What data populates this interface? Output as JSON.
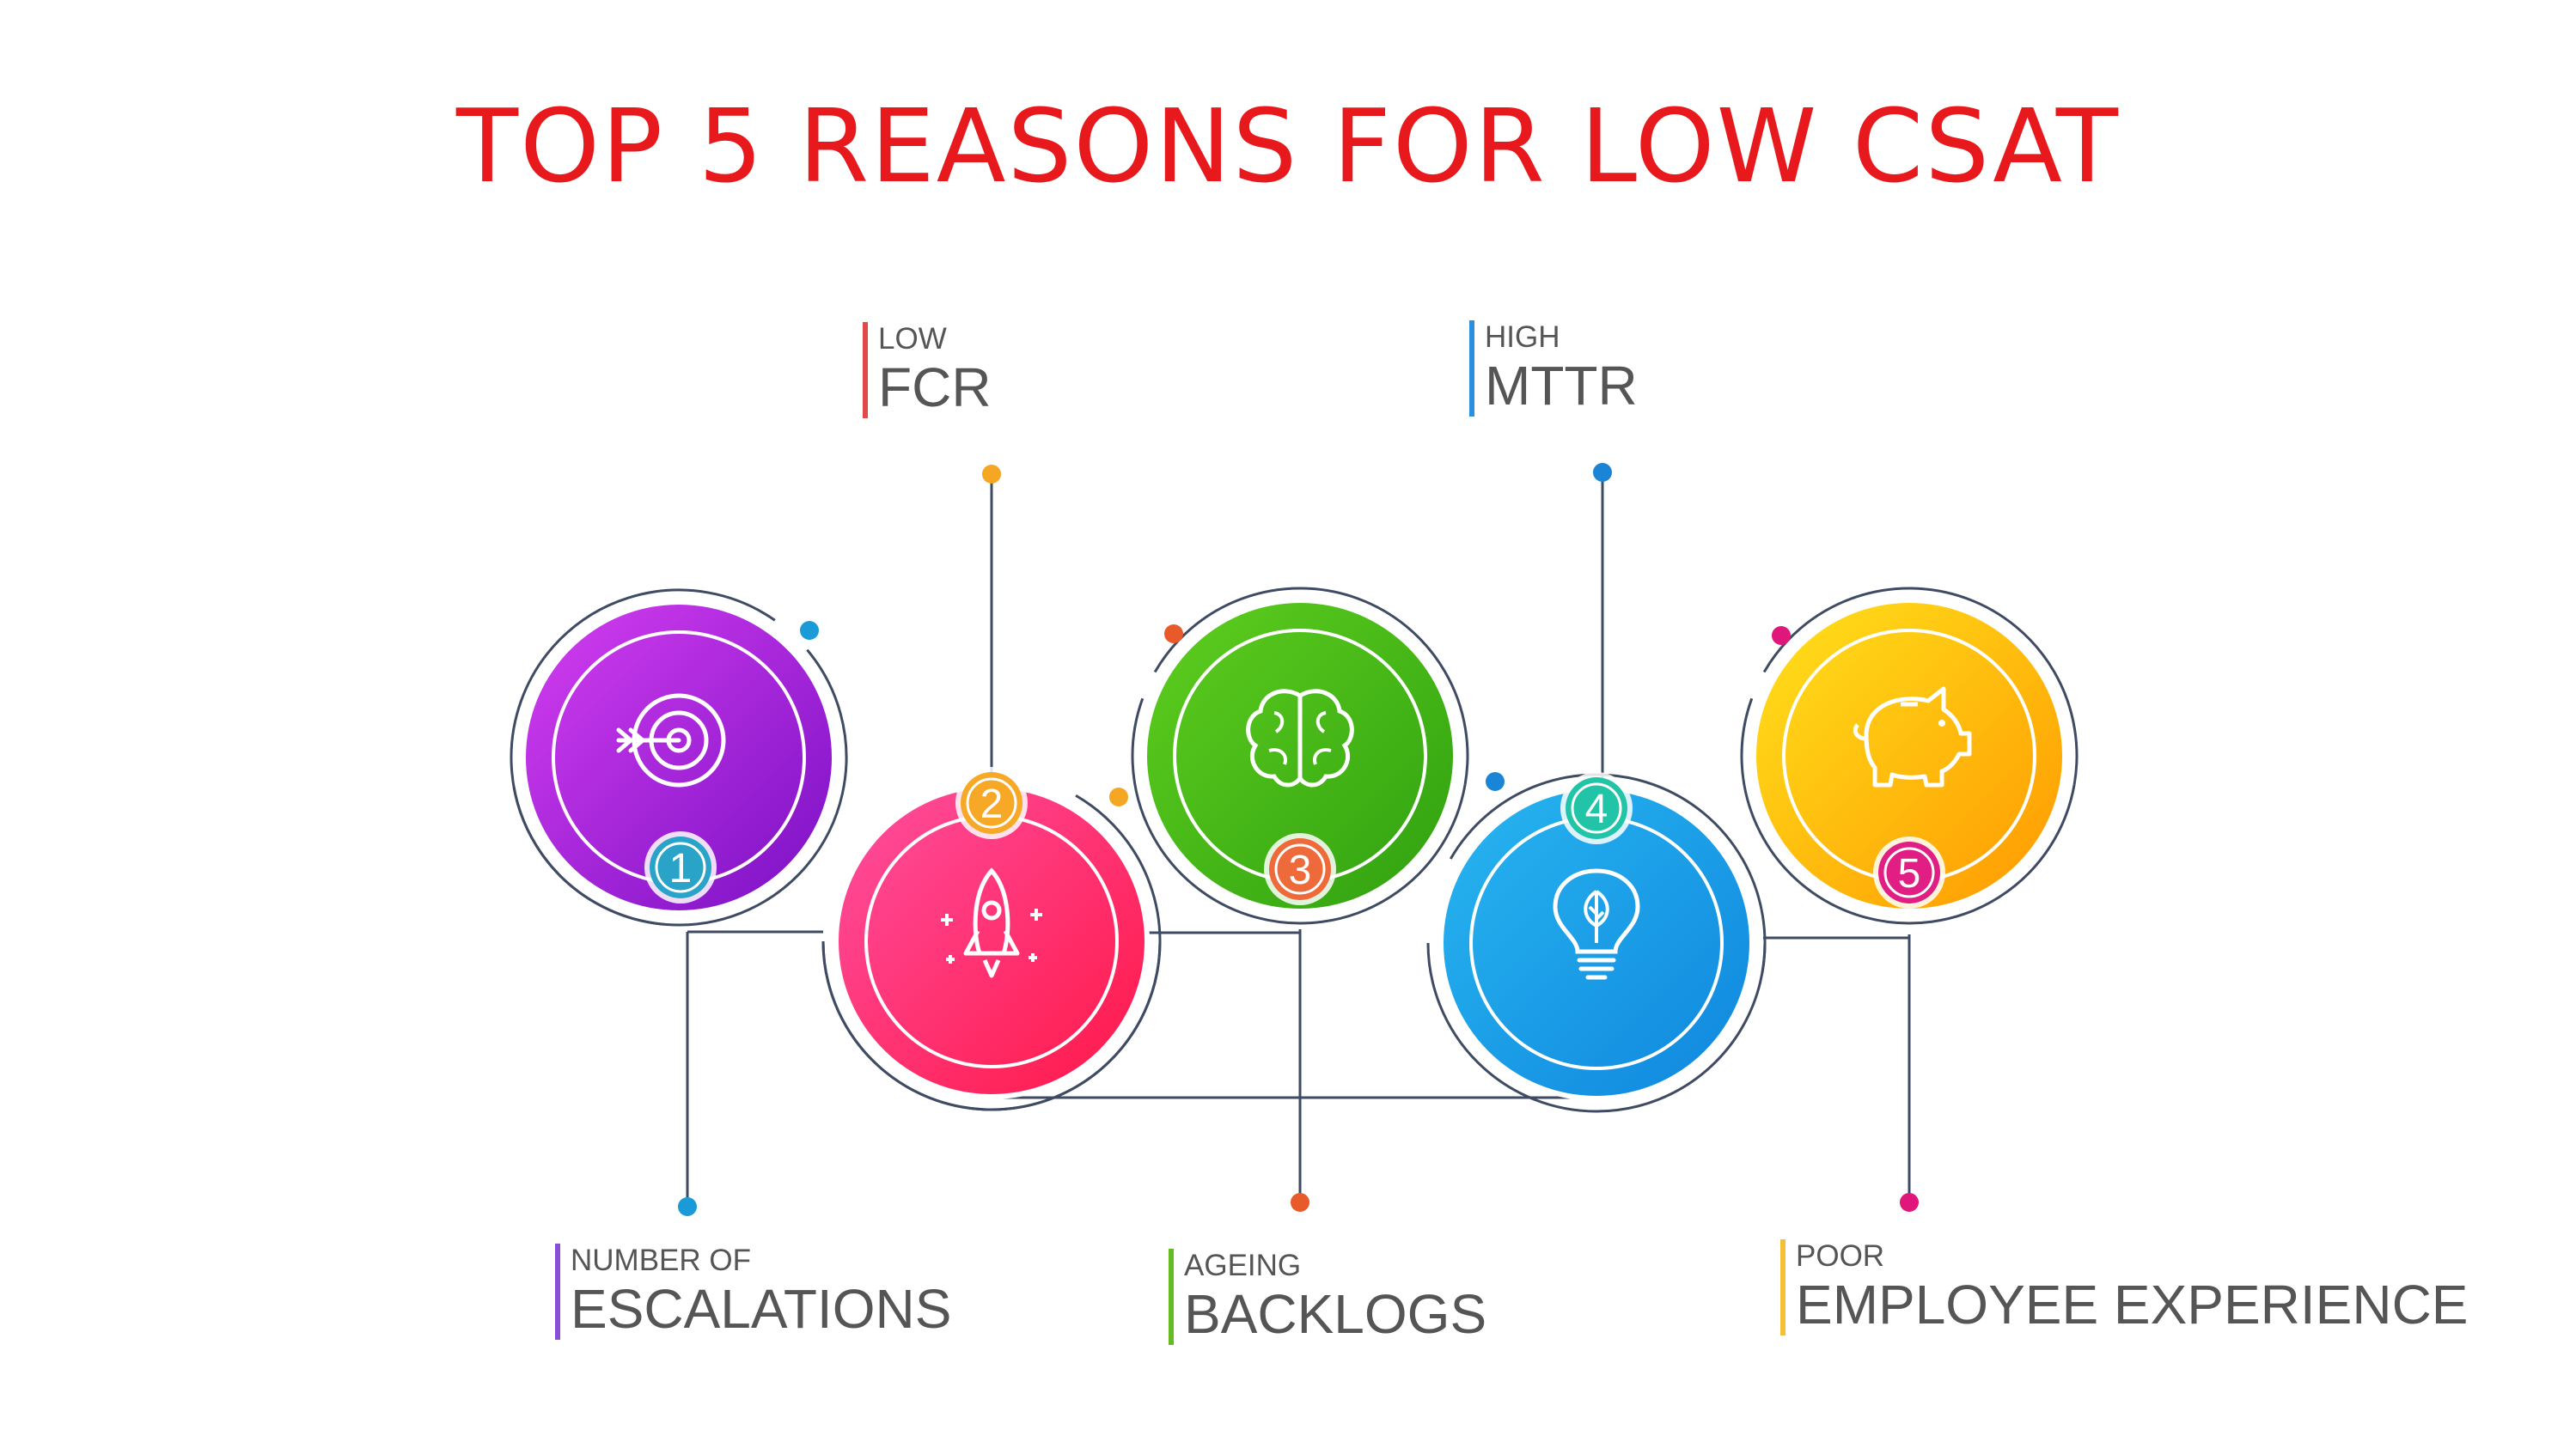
{
  "title": "TOP 5 REASONS FOR LOW CSAT",
  "colors": {
    "title": "#e8191d",
    "line": "#3f4a63",
    "label_text": "#555555"
  },
  "steps": [
    {
      "number": "1",
      "small": "NUMBER OF",
      "big": "ESCALATIONS",
      "icon": "target-icon",
      "accent": "#8a4dd6",
      "dot": "#1a9ad6",
      "circle": [
        "#d43ef0",
        "#7a10c4"
      ],
      "badge": "#2aa3c8"
    },
    {
      "number": "2",
      "small": "LOW",
      "big": "FCR",
      "icon": "rocket-icon",
      "accent": "#e24a4a",
      "dot": "#f5a623",
      "circle": [
        "#ff4fa0",
        "#ff1747"
      ],
      "badge": "#f7a826"
    },
    {
      "number": "3",
      "small": "AGEING",
      "big": "BACKLOGS",
      "icon": "brain-icon",
      "accent": "#66bb22",
      "dot": "#e85a2a",
      "circle": [
        "#5fcf1f",
        "#2fa010"
      ],
      "badge": "#ef6a3a"
    },
    {
      "number": "4",
      "small": "HIGH",
      "big": "MTTR",
      "icon": "lightbulb-icon",
      "accent": "#2b8fe0",
      "dot": "#1a84d6",
      "circle": [
        "#28b6f0",
        "#0f86de"
      ],
      "badge": "#22c4a8"
    },
    {
      "number": "5",
      "small": "POOR",
      "big": "EMPLOYEE EXPERIENCE",
      "icon": "piggy-bank-icon",
      "accent": "#f5c036",
      "dot": "#e0167a",
      "circle": [
        "#ffe21c",
        "#ff9800"
      ],
      "badge": "#e01e84"
    }
  ]
}
